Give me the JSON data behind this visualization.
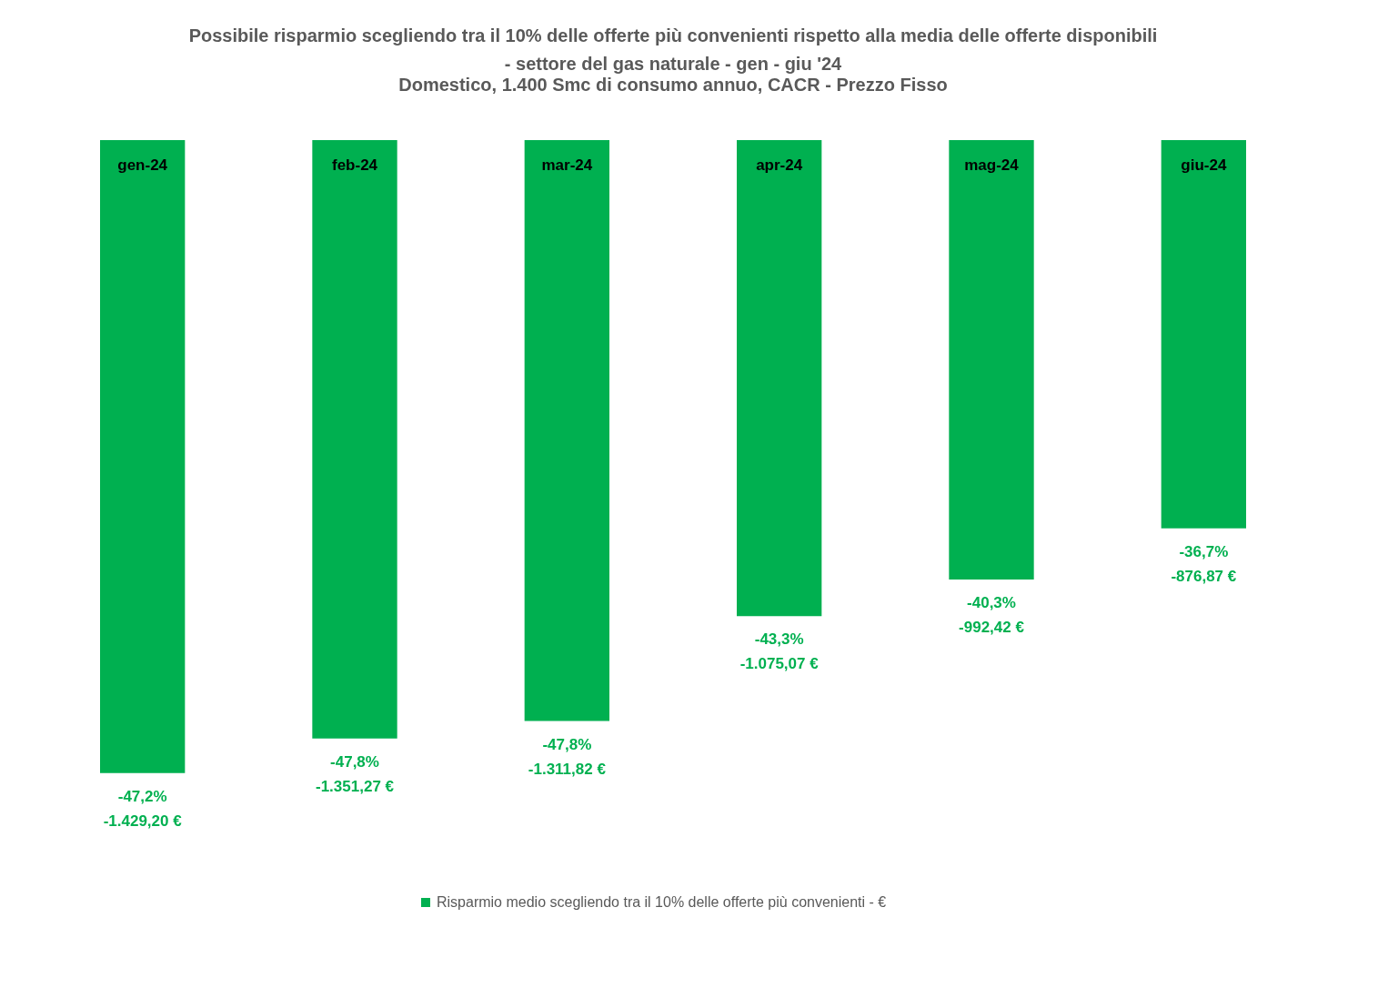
{
  "chart_data": {
    "type": "bar",
    "title": "Possibile risparmio scegliendo tra il 10% delle offerte più convenienti rispetto alla media delle offerte disponibili - settore del gas naturale - gen - giu '24",
    "subtitle": "Domestico, 1.400 Smc di consumo annuo, CACR - Prezzo Fisso",
    "categories": [
      "gen-24",
      "feb-24",
      "mar-24",
      "apr-24",
      "mag-24",
      "giu-24"
    ],
    "series": [
      {
        "name": "Risparmio medio scegliendo tra il 10% delle offerte più convenienti - €",
        "color": "#00b050",
        "values": [
          -1429.2,
          -1351.27,
          -1311.82,
          -1075.07,
          -992.42,
          -876.87
        ],
        "value_labels": [
          "-47,2%\n-1.429,20 €",
          "-47,8%\n-1.351,27 €",
          "-47,8%\n-1.311,82 €",
          "-43,3%\n-1.075,07 €",
          "-40,3%\n-992,42 €",
          "-36,7%\n-876,87 €"
        ]
      }
    ],
    "legend": "bottom"
  }
}
